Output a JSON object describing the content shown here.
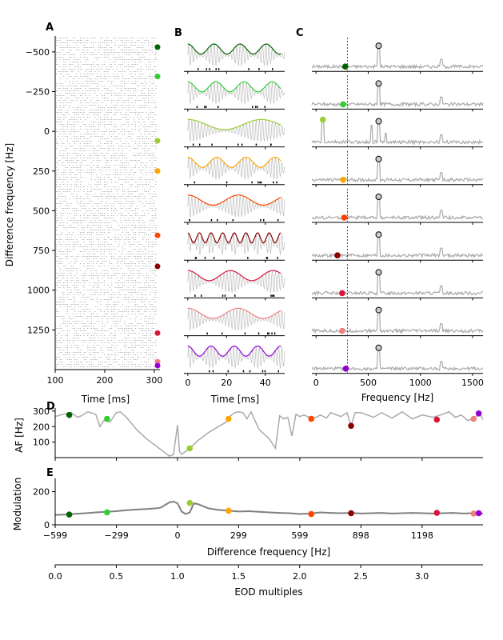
{
  "panel_labels": {
    "a": "A",
    "b": "B",
    "c": "C",
    "d": "D",
    "e": "E"
  },
  "series_colors": [
    "#006400",
    "#32cd32",
    "#9acd32",
    "#ffa500",
    "#ff4500",
    "#8b0000",
    "#dc143c",
    "#f08080",
    "#9400d3"
  ],
  "chart_data": [
    {
      "panel": "A",
      "type": "scatter",
      "description_of_marks": "spike raster (grey dots) per difference frequency",
      "xlabel": "Time [ms]",
      "ylabel": "Difference frequency [Hz]",
      "x_ticks": [
        100,
        200,
        300
      ],
      "y_ticks": [
        "−500",
        "−250",
        "0",
        "250",
        "500",
        "750",
        "1000",
        "1250"
      ],
      "y_tick_values": [
        -500,
        -250,
        0,
        250,
        500,
        750,
        1000,
        1250
      ],
      "xlim": [
        100,
        305
      ],
      "ylim": [
        1500,
        -600
      ],
      "y_inverted": true,
      "marker_df": [
        -530,
        -345,
        60,
        250,
        655,
        850,
        1270,
        1450,
        1475
      ]
    },
    {
      "panel": "B",
      "type": "line",
      "xlabel": "Time [ms]",
      "x_ticks": [
        0,
        20,
        40
      ],
      "xlim": [
        -2,
        50
      ],
      "rows": 9,
      "trace_color": "#bdbdbd",
      "envelope_periods_ms": [
        13.5,
        14.5,
        38,
        15,
        26,
        6,
        22,
        26,
        12
      ],
      "carrier_period_ms": 1.66
    },
    {
      "panel": "C",
      "type": "line",
      "xlabel": "Frequency [Hz]",
      "x_ticks": [
        0,
        500,
        1000,
        1500
      ],
      "xlim": [
        -40,
        1600
      ],
      "rows": 9,
      "eod_frequency": 600,
      "reference_line_x": 300,
      "harmonic_x": 1200,
      "trace_color": "#aaaaaa",
      "marker_x": [
        280,
        260,
        65,
        260,
        270,
        205,
        250,
        250,
        285
      ]
    },
    {
      "panel": "D",
      "type": "line",
      "ylabel": "AF [Hz]",
      "y_ticks": [
        100,
        200,
        300
      ],
      "ylim": [
        0,
        320
      ],
      "x": [
        -599,
        -560,
        -520,
        -490,
        -470,
        -440,
        -400,
        -380,
        -360,
        -330,
        -300,
        -280,
        -250,
        -200,
        -150,
        -100,
        -60,
        -40,
        -20,
        0,
        10,
        20,
        60,
        100,
        150,
        200,
        240,
        260,
        280,
        299,
        320,
        340,
        360,
        400,
        450,
        480,
        500,
        520,
        540,
        560,
        580,
        599,
        620,
        650,
        680,
        700,
        730,
        750,
        800,
        830,
        850,
        870,
        898,
        920,
        960,
        1000,
        1050,
        1100,
        1150,
        1198,
        1250,
        1300,
        1330,
        1360,
        1390,
        1420,
        1450,
        1480,
        1496
      ],
      "y": [
        265,
        280,
        290,
        260,
        270,
        295,
        280,
        200,
        240,
        230,
        290,
        295,
        260,
        180,
        120,
        70,
        30,
        10,
        20,
        210,
        40,
        20,
        60,
        110,
        160,
        200,
        230,
        270,
        290,
        295,
        290,
        250,
        295,
        180,
        120,
        60,
        270,
        250,
        260,
        140,
        280,
        265,
        275,
        255,
        260,
        275,
        255,
        290,
        265,
        290,
        205,
        290,
        290,
        280,
        260,
        290,
        255,
        295,
        250,
        275,
        260,
        280,
        295,
        260,
        275,
        240,
        250,
        285,
        245
      ],
      "markers_x": [
        -530,
        -345,
        60,
        250,
        655,
        850,
        1270,
        1450,
        1475
      ],
      "markers_y": [
        275,
        250,
        60,
        250,
        250,
        205,
        245,
        250,
        285
      ]
    },
    {
      "panel": "E",
      "type": "line",
      "xlabel": "Difference frequency [Hz]",
      "ylabel": "Modulation",
      "x_ticks": [
        "−599",
        "−299",
        "0",
        "299",
        "599",
        "898",
        "1198"
      ],
      "x_tick_values": [
        -599,
        -299,
        0,
        299,
        599,
        898,
        1198
      ],
      "y_ticks": [
        0,
        200
      ],
      "ylim": [
        0,
        280
      ],
      "xlim": [
        -599,
        1496
      ],
      "x": [
        -599,
        -550,
        -500,
        -450,
        -400,
        -350,
        -300,
        -250,
        -200,
        -150,
        -100,
        -80,
        -60,
        -40,
        -20,
        0,
        20,
        40,
        60,
        80,
        100,
        150,
        200,
        250,
        300,
        350,
        400,
        450,
        500,
        550,
        600,
        650,
        700,
        750,
        800,
        850,
        900,
        950,
        1000,
        1050,
        1100,
        1150,
        1200,
        1250,
        1300,
        1350,
        1400,
        1450,
        1496
      ],
      "y": [
        60,
        62,
        66,
        70,
        75,
        78,
        82,
        88,
        92,
        95,
        100,
        105,
        120,
        135,
        140,
        130,
        80,
        65,
        75,
        130,
        125,
        100,
        90,
        85,
        80,
        82,
        78,
        75,
        72,
        70,
        65,
        68,
        75,
        72,
        70,
        72,
        68,
        70,
        72,
        68,
        70,
        72,
        70,
        68,
        70,
        72,
        68,
        70,
        68
      ],
      "markers_x": [
        -530,
        -345,
        60,
        250,
        655,
        850,
        1270,
        1450,
        1475
      ],
      "markers_y": [
        62,
        75,
        132,
        85,
        65,
        70,
        72,
        68,
        70
      ]
    },
    {
      "panel": "E-secondary",
      "type": "line",
      "xlabel": "EOD multiples",
      "x_ticks": [
        "0.0",
        "0.5",
        "1.0",
        "1.5",
        "2.0",
        "2.5",
        "3.0"
      ],
      "x_tick_values": [
        0,
        0.5,
        1.0,
        1.5,
        2.0,
        2.5,
        3.0
      ],
      "xlim": [
        0,
        3.5
      ]
    }
  ]
}
